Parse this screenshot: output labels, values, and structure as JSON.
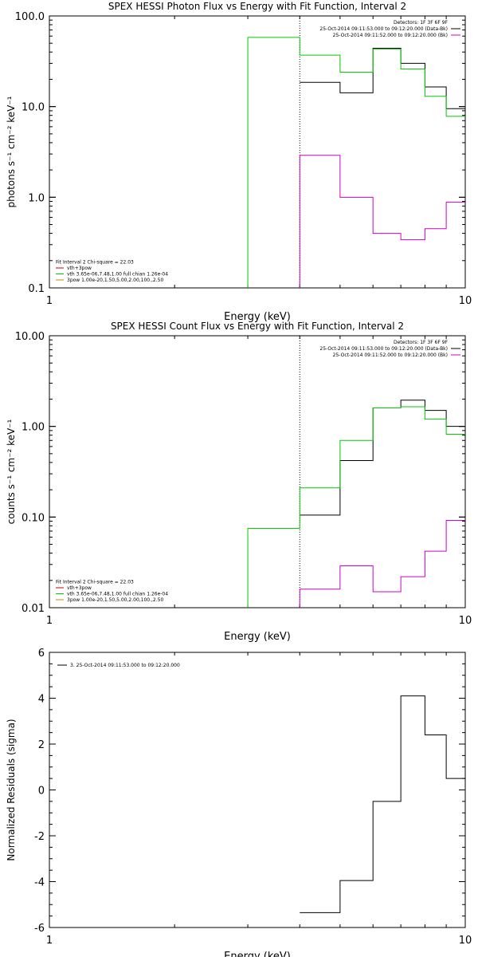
{
  "chart_data": [
    {
      "type": "line",
      "title": "SPEX HESSI Photon Flux vs Energy with Fit Function, Interval 2",
      "xlabel": "Energy (keV)",
      "ylabel": "photons s⁻¹ cm⁻² keV⁻¹",
      "xscale": "log",
      "yscale": "log",
      "xlim": [
        1,
        10
      ],
      "ylim": [
        0.1,
        100
      ],
      "xticks": [
        {
          "v": 1,
          "label": "1"
        },
        {
          "v": 10,
          "label": "10"
        }
      ],
      "yticks": [
        {
          "v": 0.1,
          "label": "0.1"
        },
        {
          "v": 1,
          "label": "1.0"
        },
        {
          "v": 10,
          "label": "10.0"
        },
        {
          "v": 100,
          "label": "100.0"
        }
      ],
      "vline": 4.0,
      "legend_top_right": [
        {
          "text": "Detectors: 1F 3F 6F 9F",
          "color": "",
          "bold": false
        },
        {
          "text": "25-Oct-2014 09:11:53.000 to 09:12:20.000 (Data-Bk)",
          "color": "#000000"
        },
        {
          "text": "25-Oct-2014 09:11:52.000 to 09:12:20.000 (Bk)",
          "color": "#cc00cc"
        }
      ],
      "legend_bottom_left": [
        {
          "text": "Fit Interval 2   Chi-square = 22.03",
          "color": ""
        },
        {
          "text": "vth+3pow",
          "color": "#cc0000"
        },
        {
          "text": "vth 3.65e-06,7.48,1.00  full chian 1.26e-04",
          "color": "#00cc00"
        },
        {
          "text": "3pow 1.00e-20,1.50,5.00,2.00,100.,2.50",
          "color": "#cc8800"
        }
      ],
      "series": [
        {
          "name": "25-Oct-2014 09:11:53.000 to 09:12:20.000 (Data-Bk)",
          "color": "#000000",
          "edges": [
            4.0,
            5.0,
            6.0,
            7.0,
            8.0,
            9.0,
            10.0
          ],
          "values": [
            18.5,
            14.2,
            44.0,
            30.0,
            16.5,
            9.5
          ]
        },
        {
          "name": "25-Oct-2014 09:11:52.000 to 09:12:20.000 (Bk)",
          "color": "#cc00cc",
          "edges": [
            4.0,
            5.0,
            6.0,
            7.0,
            8.0,
            9.0,
            10.0
          ],
          "values": [
            2.9,
            1.0,
            0.4,
            0.34,
            0.45,
            0.88
          ],
          "drop_start": true
        },
        {
          "name": "vth",
          "color": "#00cc00",
          "edges": [
            3.0,
            4.0,
            5.0,
            6.0,
            7.0,
            8.0,
            9.0,
            10.0
          ],
          "values": [
            58.0,
            37.0,
            24.0,
            43.0,
            26.0,
            13.0,
            7.8
          ],
          "drop_start": true
        }
      ]
    },
    {
      "type": "line",
      "title": "SPEX HESSI Count Flux vs Energy with Fit Function, Interval 2",
      "xlabel": "Energy (keV)",
      "ylabel": "counts s⁻¹ cm⁻² keV⁻¹",
      "xscale": "log",
      "yscale": "log",
      "xlim": [
        1,
        10
      ],
      "ylim": [
        0.01,
        10
      ],
      "xticks": [
        {
          "v": 1,
          "label": "1"
        },
        {
          "v": 10,
          "label": "10"
        }
      ],
      "yticks": [
        {
          "v": 0.01,
          "label": "0.01"
        },
        {
          "v": 0.1,
          "label": "0.10"
        },
        {
          "v": 1,
          "label": "1.00"
        },
        {
          "v": 10,
          "label": "10.00"
        }
      ],
      "vline": 4.0,
      "legend_top_right": [
        {
          "text": "Detectors: 1F 3F 6F 9F",
          "color": ""
        },
        {
          "text": "25-Oct-2014 09:11:53.000 to 09:12:20.000 (Data-Bk)",
          "color": "#000000"
        },
        {
          "text": "25-Oct-2014 09:11:52.000 to 09:12:20.000 (Bk)",
          "color": "#cc00cc"
        }
      ],
      "legend_bottom_left": [
        {
          "text": "Fit Interval 2   Chi-square = 22.03",
          "color": ""
        },
        {
          "text": "vth+3pow",
          "color": "#cc0000"
        },
        {
          "text": "vth 3.65e-06,7.48,1.00  full chian 1.26e-04",
          "color": "#00cc00"
        },
        {
          "text": "3pow 1.00e-20,1.50,5.00,2.00,100.,2.50",
          "color": "#cc8800"
        }
      ],
      "series": [
        {
          "name": "25-Oct-2014 09:11:53.000 to 09:12:20.000 (Data-Bk)",
          "color": "#000000",
          "edges": [
            4.0,
            5.0,
            6.0,
            7.0,
            8.0,
            9.0,
            10.0
          ],
          "values": [
            0.105,
            0.42,
            1.6,
            1.95,
            1.5,
            1.0
          ]
        },
        {
          "name": "25-Oct-2014 09:11:52.000 to 09:12:20.000 (Bk)",
          "color": "#cc00cc",
          "edges": [
            4.0,
            5.0,
            6.0,
            7.0,
            8.0,
            9.0,
            10.0
          ],
          "values": [
            0.016,
            0.029,
            0.015,
            0.022,
            0.042,
            0.092
          ],
          "drop_start": true
        },
        {
          "name": "vth",
          "color": "#00cc00",
          "edges": [
            3.0,
            4.0,
            5.0,
            6.0,
            7.0,
            8.0,
            9.0,
            10.0
          ],
          "values": [
            0.075,
            0.21,
            0.7,
            1.6,
            1.65,
            1.2,
            0.82
          ],
          "drop_start": true
        }
      ]
    },
    {
      "type": "line",
      "title": "",
      "xlabel": "Energy (keV)",
      "ylabel": "Normalized Residuals (sigma)",
      "xscale": "log",
      "yscale": "linear",
      "xlim": [
        1,
        10
      ],
      "ylim": [
        -6,
        6
      ],
      "xticks": [
        {
          "v": 1,
          "label": "1"
        },
        {
          "v": 10,
          "label": "10"
        }
      ],
      "yticks": [
        {
          "v": -6,
          "label": "-6"
        },
        {
          "v": -4,
          "label": "-4"
        },
        {
          "v": -2,
          "label": "-2"
        },
        {
          "v": 0,
          "label": "0"
        },
        {
          "v": 2,
          "label": "2"
        },
        {
          "v": 4,
          "label": "4"
        },
        {
          "v": 6,
          "label": "6"
        }
      ],
      "legend_top_left": [
        {
          "text": "3. 25-Oct-2014 09:11:53.000 to 09:12:20.000",
          "color": "#000000"
        }
      ],
      "series": [
        {
          "name": "3. 25-Oct-2014 09:11:53.000 to 09:12:20.000",
          "color": "#000000",
          "edges": [
            4.0,
            5.0,
            6.0,
            7.0,
            8.0,
            9.0,
            10.0
          ],
          "values": [
            -5.35,
            -3.95,
            -0.5,
            4.1,
            2.4,
            0.5
          ]
        }
      ]
    }
  ]
}
